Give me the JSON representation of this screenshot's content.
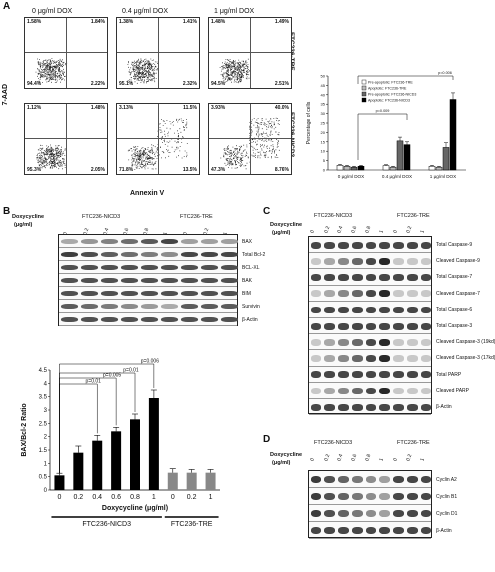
{
  "panelA": {
    "letter": "A",
    "doses": [
      "0 μg/ml DOX",
      "0.4 μg/ml DOX",
      "1 μg/ml DOX"
    ],
    "row_labels": [
      "FTC236-TRE",
      "FTC236-NICD3"
    ],
    "yaxis": "7-AAD",
    "xaxis": "Annexin V",
    "quadrants": [
      [
        [
          "1.58%",
          "1.84%",
          "94.4%",
          "2.22%"
        ],
        [
          "1.38%",
          "1.41%",
          "95.1%",
          "2.32%"
        ],
        [
          "1.48%",
          "1.49%",
          "94.5%",
          "2.51%"
        ]
      ],
      [
        [
          "1.12%",
          "1.48%",
          "95.3%",
          "2.05%"
        ],
        [
          "3.13%",
          "11.5%",
          "71.8%",
          "13.5%"
        ],
        [
          "3.93%",
          "40.0%",
          "47.3%",
          "8.76%"
        ]
      ]
    ],
    "chart": {
      "ylabel": "Percentage of cells",
      "yticks": [
        "0",
        "5",
        "10",
        "15",
        "20",
        "25",
        "30",
        "35",
        "40",
        "45",
        "50"
      ],
      "xcats": [
        "0 μg/ml DOX",
        "0.4 μg/ml DOX",
        "1 μg/ml DOX"
      ],
      "legend": [
        "Pre-apoptotic: FTC236-TRE",
        "Apoptotic: FTC236-TRE",
        "Pre-apoptotic: FTC236-NICD3",
        "Apoptotic: FTC236-NICD3"
      ],
      "pvals": [
        "p=0.006",
        "p=0.009"
      ]
    }
  },
  "panelB": {
    "letter": "B",
    "doxy": "Doxycycline",
    "ugml": "(μg/ml)",
    "group1": "FTC236-NICD3",
    "group2": "FTC236-TRE",
    "lanes": [
      "0",
      "0.2",
      "0.4",
      "0.6",
      "0.8",
      "1",
      "0",
      "0.2",
      "1"
    ],
    "bands": [
      "BAX",
      "Total Bcl-2",
      "BCL-XL",
      "BAK",
      "BIM",
      "Survivin",
      "β-Actin"
    ],
    "chart": {
      "ylabel": "BAX/Bcl-2 Ratio",
      "xlabel": "Doxycycline (μg/ml)",
      "pvals": [
        "p=0.01",
        "p=0.005",
        "p=0.01",
        "p=0.006"
      ],
      "yticks": [
        "0",
        "0.5",
        "1",
        "1.5",
        "2",
        "2.5",
        "3",
        "3.5",
        "4",
        "4.5"
      ],
      "group1": "FTC236-NICD3",
      "group2": "FTC236-TRE"
    }
  },
  "chart_data": [
    {
      "type": "bar",
      "title": "",
      "ylabel": "Percentage of cells",
      "ylim": [
        0,
        50
      ],
      "categories": [
        "0 μg/ml DOX",
        "0.4 μg/ml DOX",
        "1 μg/ml DOX"
      ],
      "series": [
        {
          "name": "Pre-apoptotic: FTC236-TRE",
          "values": [
            2.5,
            2.3,
            2.0
          ],
          "color": "#ffffff"
        },
        {
          "name": "Apoptotic: FTC236-TRE",
          "values": [
            2.0,
            1.5,
            1.5
          ],
          "color": "#bbbbbb"
        },
        {
          "name": "Pre-apoptotic: FTC236-NICD3",
          "values": [
            1.5,
            15.5,
            12.0
          ],
          "color": "#666666"
        },
        {
          "name": "Apoptotic: FTC236-NICD3",
          "values": [
            2.0,
            13.5,
            37.5
          ],
          "color": "#000000"
        }
      ],
      "errors": [
        [
          0.5,
          0.5,
          0.5
        ],
        [
          0.5,
          0.5,
          0.5
        ],
        [
          0.5,
          2,
          2.5
        ],
        [
          0.5,
          1.5,
          3.5
        ]
      ]
    },
    {
      "type": "bar",
      "ylabel": "BAX/Bcl-2 Ratio",
      "xlabel": "Doxycycline (μg/ml)",
      "ylim": [
        0,
        4.5
      ],
      "categories": [
        "0",
        "0.2",
        "0.4",
        "0.6",
        "0.8",
        "1",
        "0",
        "0.2",
        "1"
      ],
      "values": [
        0.55,
        1.4,
        1.85,
        2.2,
        2.65,
        3.45,
        0.65,
        0.65,
        0.65
      ],
      "errors": [
        0.08,
        0.25,
        0.2,
        0.15,
        0.2,
        0.3,
        0.15,
        0.12,
        0.12
      ],
      "colors": [
        "#000",
        "#000",
        "#000",
        "#000",
        "#000",
        "#000",
        "#888",
        "#888",
        "#888"
      ]
    }
  ],
  "panelC": {
    "letter": "C",
    "doxy": "Doxycycline",
    "ugml": "(μg/ml)",
    "group1": "FTC236-NICD3",
    "group2": "FTC236-TRE",
    "lanes": [
      "0",
      "0.2",
      "0.4",
      "0.6",
      "0.8",
      "1",
      "0",
      "0.2",
      "1"
    ],
    "bands": [
      "Total Caspase-9",
      "Cleaved Caspase-9",
      "Total Caspase-7",
      "Cleaved Caspase-7",
      "Total Caspase-6",
      "Total Caspase-3",
      "Cleaved Caspase-3 (19kd)",
      "Cleaved Caspase-3 (17kd)",
      "Total PARP",
      "Cleaved PARP",
      "β-Actin"
    ]
  },
  "panelD": {
    "letter": "D",
    "doxy": "Doxycycline",
    "ugml": "(μg/ml)",
    "group1": "FTC236-NICD3",
    "group2": "FTC236-TRE",
    "lanes": [
      "0",
      "0.2",
      "0.4",
      "0.6",
      "0.8",
      "1",
      "0",
      "0.2",
      "1"
    ],
    "bands": [
      "Cyclin A2",
      "Cyclin B1",
      "Cyclin D1",
      "β-Actin"
    ]
  }
}
